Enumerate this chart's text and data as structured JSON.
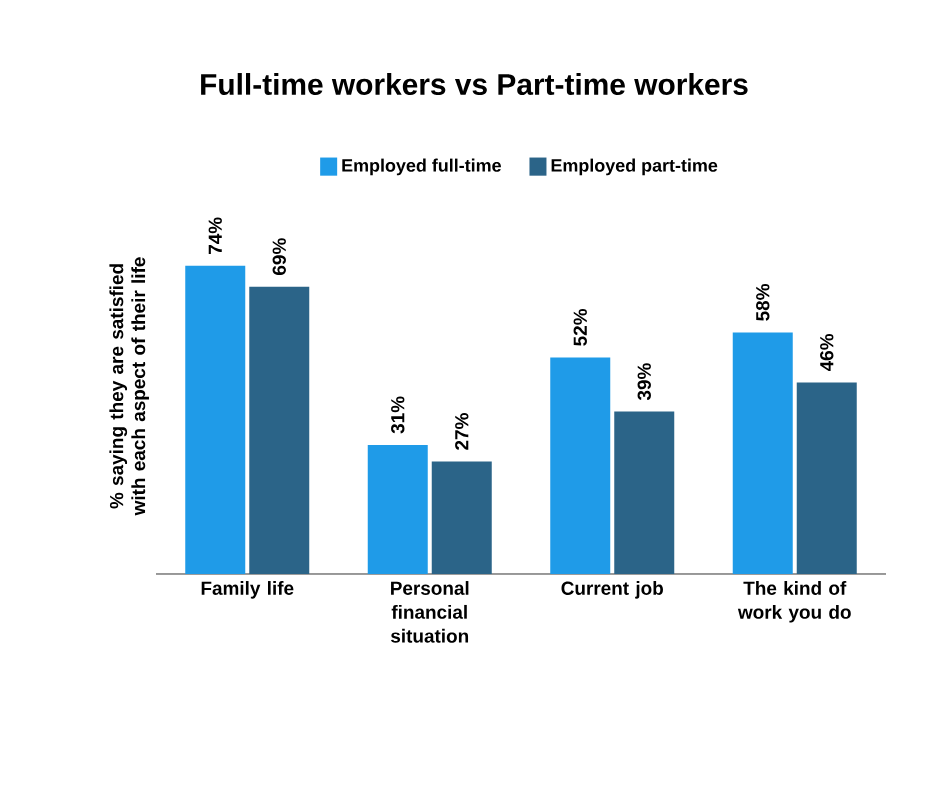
{
  "chart_data": {
    "type": "bar",
    "title": "Full-time workers vs Part-time workers",
    "ylabel": "% saying they are satisfied with each aspect of their life",
    "categories": [
      "Family life",
      "Personal financial situation",
      "Current job",
      "The kind of work you do"
    ],
    "series": [
      {
        "name": "Employed full-time",
        "color": "#1f9be8",
        "values": [
          74,
          31,
          52,
          58
        ],
        "value_labels": [
          "74%",
          "31%",
          "52%",
          "58%"
        ]
      },
      {
        "name": "Employed part-time",
        "color": "#2b6488",
        "values": [
          69,
          27,
          39,
          46
        ],
        "value_labels": [
          "69%",
          "27%",
          "39%",
          "46%"
        ]
      }
    ],
    "legend": "top"
  }
}
